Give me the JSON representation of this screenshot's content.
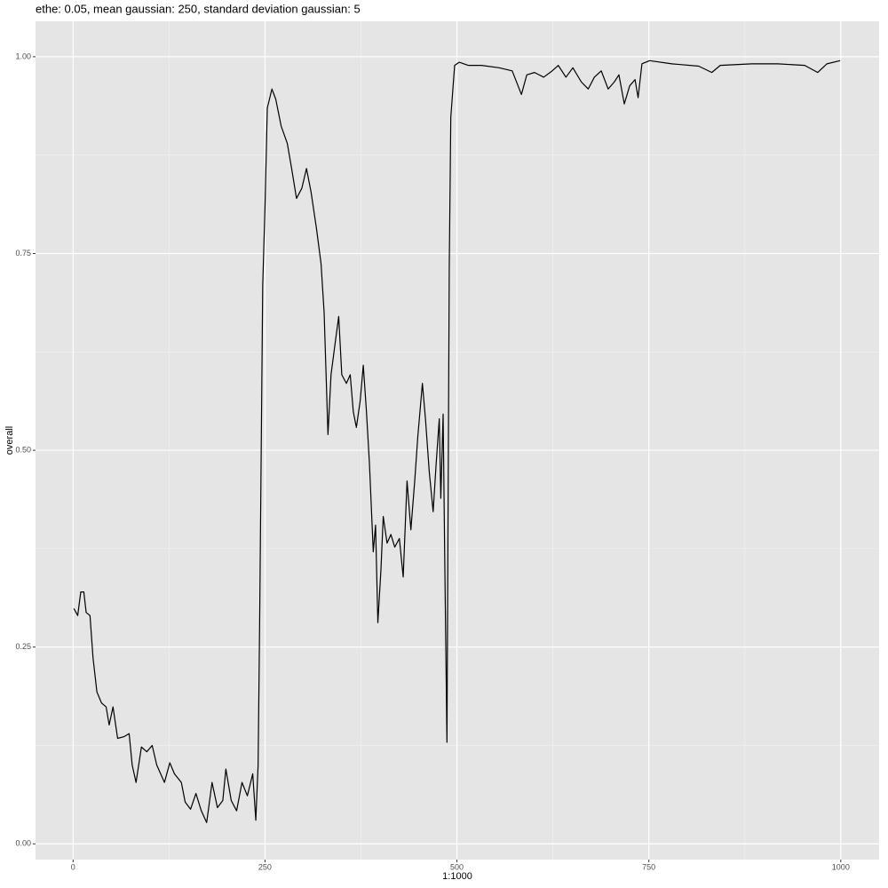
{
  "chart_data": {
    "type": "line",
    "title": "ethe: 0.05, mean gaussian: 250, standard deviation gaussian: 5",
    "x_label": "1:1000",
    "y_label": "overall",
    "xlim": [
      -48.95,
      1049.95
    ],
    "ylim": [
      -0.02,
      1.045
    ],
    "xticks": [
      0,
      250,
      500,
      750,
      1000
    ],
    "yticks": [
      {
        "value": 0,
        "label": "0.00"
      },
      {
        "value": 0.25,
        "label": "0.25"
      },
      {
        "value": 0.5,
        "label": "0.50"
      },
      {
        "value": 0.75,
        "label": "0.75"
      },
      {
        "value": 1,
        "label": "1.00"
      }
    ],
    "grid": true,
    "series": [
      {
        "color": "#000000",
        "x": [
          1,
          6,
          10,
          14,
          17,
          22,
          26,
          31,
          37,
          43,
          47,
          52,
          58,
          66,
          73,
          77,
          82,
          89,
          96,
          103,
          109,
          119,
          126,
          132,
          141,
          146,
          153,
          160,
          167,
          174,
          181,
          188,
          195,
          199,
          206,
          213,
          220,
          227,
          234,
          238,
          241,
          243,
          247,
          250,
          253,
          259,
          264,
          271,
          279,
          285,
          291,
          298,
          304,
          310,
          317,
          323,
          327,
          332,
          336,
          342,
          346,
          350,
          356,
          361,
          365,
          369,
          374,
          378,
          382,
          386,
          391,
          394,
          397,
          401,
          404,
          409,
          414,
          419,
          425,
          430,
          435,
          440,
          445,
          449,
          455,
          459,
          464,
          469,
          473,
          477,
          479,
          482,
          484,
          487,
          490,
          492,
          497,
          503,
          515,
          532,
          555,
          572,
          584,
          591,
          601,
          613,
          624,
          632,
          642,
          651,
          662,
          671,
          679,
          688,
          697,
          705,
          711,
          718,
          725,
          732,
          736,
          741,
          751,
          780,
          815,
          832,
          843,
          884,
          918,
          953,
          970,
          982,
          999
        ],
        "values": [
          0.299,
          0.29,
          0.32,
          0.32,
          0.294,
          0.29,
          0.236,
          0.193,
          0.179,
          0.174,
          0.151,
          0.174,
          0.134,
          0.136,
          0.14,
          0.1,
          0.078,
          0.123,
          0.117,
          0.125,
          0.1,
          0.078,
          0.103,
          0.089,
          0.078,
          0.053,
          0.044,
          0.064,
          0.042,
          0.027,
          0.078,
          0.046,
          0.055,
          0.095,
          0.055,
          0.042,
          0.078,
          0.061,
          0.089,
          0.03,
          0.1,
          0.281,
          0.709,
          0.81,
          0.935,
          0.959,
          0.946,
          0.912,
          0.89,
          0.856,
          0.82,
          0.833,
          0.858,
          0.828,
          0.782,
          0.737,
          0.675,
          0.52,
          0.596,
          0.641,
          0.67,
          0.596,
          0.585,
          0.596,
          0.549,
          0.529,
          0.563,
          0.608,
          0.551,
          0.484,
          0.371,
          0.405,
          0.281,
          0.348,
          0.416,
          0.382,
          0.393,
          0.377,
          0.388,
          0.339,
          0.461,
          0.399,
          0.461,
          0.517,
          0.585,
          0.54,
          0.472,
          0.422,
          0.484,
          0.54,
          0.439,
          0.546,
          0.371,
          0.129,
          0.732,
          0.923,
          0.989,
          0.993,
          0.989,
          0.989,
          0.986,
          0.982,
          0.952,
          0.977,
          0.98,
          0.974,
          0.982,
          0.989,
          0.974,
          0.986,
          0.968,
          0.959,
          0.974,
          0.982,
          0.959,
          0.968,
          0.977,
          0.94,
          0.963,
          0.971,
          0.948,
          0.991,
          0.995,
          0.991,
          0.988,
          0.98,
          0.989,
          0.991,
          0.991,
          0.989,
          0.98,
          0.991,
          0.995
        ]
      }
    ]
  }
}
